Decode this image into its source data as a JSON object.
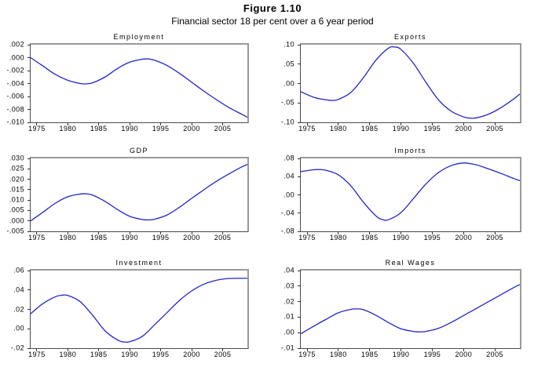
{
  "figure": {
    "title": "Figure 1.10",
    "subtitle": "Financial sector 18 per cent over a 6 year period"
  },
  "colors": {
    "line": "#2323cc",
    "frame_light": "#9a9a9a",
    "frame_dark": "#4a4a4a",
    "text": "#000000"
  },
  "axis": {
    "x_min": 1974,
    "x_max": 2009,
    "x_ticks": [
      "1975",
      "1980",
      "1985",
      "1990",
      "1995",
      "2000",
      "2005"
    ]
  },
  "chart_data": [
    {
      "type": "line",
      "title": "Employment",
      "xlabel": "",
      "ylabel": "",
      "xlim": [
        1974,
        2009
      ],
      "ylim": [
        -0.01,
        0.002
      ],
      "grid": false,
      "legend": "none",
      "yticks": {
        "labels": [
          ".002",
          ".000",
          "-.002",
          "-.004",
          "-.006",
          "-.008",
          "-.010"
        ],
        "values": [
          0.002,
          0.0,
          -0.002,
          -0.004,
          -0.006,
          -0.008,
          -0.01
        ]
      },
      "x": [
        1974,
        1976,
        1978,
        1980,
        1982,
        1983,
        1984,
        1986,
        1988,
        1990,
        1992,
        1993,
        1994,
        1996,
        1998,
        2000,
        2002,
        2004,
        2006,
        2008,
        2009
      ],
      "y": [
        0.0,
        -0.0013,
        -0.0026,
        -0.0035,
        -0.004,
        -0.00405,
        -0.0039,
        -0.003,
        -0.0017,
        -0.0007,
        -0.00025,
        -0.0002,
        -0.0004,
        -0.0012,
        -0.0024,
        -0.0038,
        -0.0052,
        -0.0065,
        -0.0077,
        -0.0087,
        -0.0092
      ]
    },
    {
      "type": "line",
      "title": "Exports",
      "xlabel": "",
      "ylabel": "",
      "xlim": [
        1974,
        2009
      ],
      "ylim": [
        -0.1,
        0.1
      ],
      "grid": false,
      "legend": "none",
      "yticks": {
        "labels": [
          ".10",
          ".05",
          ".00",
          "-.05",
          "-.10"
        ],
        "values": [
          0.1,
          0.05,
          0.0,
          -0.05,
          -0.1
        ]
      },
      "x": [
        1974,
        1976,
        1978,
        1979,
        1980,
        1982,
        1984,
        1986,
        1988,
        1989,
        1990,
        1992,
        1994,
        1996,
        1998,
        2000,
        2001,
        2002,
        2004,
        2006,
        2008,
        2009
      ],
      "y": [
        -0.021,
        -0.035,
        -0.042,
        -0.0435,
        -0.041,
        -0.023,
        0.015,
        0.06,
        0.091,
        0.094,
        0.088,
        0.052,
        0.003,
        -0.042,
        -0.071,
        -0.086,
        -0.089,
        -0.0885,
        -0.079,
        -0.062,
        -0.04,
        -0.027
      ]
    },
    {
      "type": "line",
      "title": "GDP",
      "xlabel": "",
      "ylabel": "",
      "xlim": [
        1974,
        2009
      ],
      "ylim": [
        -0.005,
        0.03
      ],
      "grid": false,
      "legend": "none",
      "yticks": {
        "labels": [
          ".030",
          ".025",
          ".020",
          ".015",
          ".010",
          ".005",
          ".000",
          "-.005"
        ],
        "values": [
          0.03,
          0.025,
          0.02,
          0.015,
          0.01,
          0.005,
          0.0,
          -0.005
        ]
      },
      "x": [
        1974,
        1976,
        1978,
        1980,
        1982,
        1983,
        1984,
        1986,
        1988,
        1990,
        1992,
        1993,
        1994,
        1996,
        1998,
        2000,
        2002,
        2004,
        2006,
        2008,
        2009
      ],
      "y": [
        0.0,
        0.0042,
        0.0085,
        0.0116,
        0.0129,
        0.013,
        0.0124,
        0.0094,
        0.0055,
        0.0022,
        0.0007,
        0.0005,
        0.0008,
        0.0028,
        0.0065,
        0.0108,
        0.015,
        0.019,
        0.0225,
        0.0258,
        0.0271
      ]
    },
    {
      "type": "line",
      "title": "Imports",
      "xlabel": "",
      "ylabel": "",
      "xlim": [
        1974,
        2009
      ],
      "ylim": [
        -0.08,
        0.08
      ],
      "grid": false,
      "legend": "none",
      "yticks": {
        "labels": [
          ".08",
          ".04",
          ".00",
          "-.04",
          "-.08"
        ],
        "values": [
          0.08,
          0.04,
          0.0,
          -0.04,
          -0.08
        ]
      },
      "x": [
        1974,
        1976,
        1977,
        1978,
        1980,
        1982,
        1984,
        1986,
        1987,
        1988,
        1990,
        1992,
        1994,
        1996,
        1998,
        2000,
        2002,
        2004,
        2006,
        2008,
        2009
      ],
      "y": [
        0.051,
        0.055,
        0.0555,
        0.054,
        0.044,
        0.02,
        -0.016,
        -0.046,
        -0.054,
        -0.0545,
        -0.039,
        -0.008,
        0.024,
        0.049,
        0.064,
        0.07,
        0.066,
        0.057,
        0.047,
        0.036,
        0.031
      ]
    },
    {
      "type": "line",
      "title": "Investment",
      "xlabel": "",
      "ylabel": "",
      "xlim": [
        1974,
        2009
      ],
      "ylim": [
        -0.02,
        0.06
      ],
      "grid": false,
      "legend": "none",
      "yticks": {
        "labels": [
          ".06",
          ".04",
          ".02",
          ".00",
          "-.02"
        ],
        "values": [
          0.06,
          0.04,
          0.02,
          0.0,
          -0.02
        ]
      },
      "x": [
        1974,
        1976,
        1978,
        1979,
        1980,
        1982,
        1984,
        1986,
        1988,
        1989,
        1990,
        1992,
        1994,
        1996,
        1998,
        2000,
        2002,
        2004,
        2006,
        2008,
        2009
      ],
      "y": [
        0.0155,
        0.026,
        0.033,
        0.0345,
        0.0343,
        0.028,
        0.014,
        -0.002,
        -0.0115,
        -0.0135,
        -0.0133,
        -0.008,
        0.004,
        0.0165,
        0.029,
        0.039,
        0.046,
        0.05,
        0.0518,
        0.052,
        0.052
      ]
    },
    {
      "type": "line",
      "title": "Real Wages",
      "xlabel": "",
      "ylabel": "",
      "xlim": [
        1974,
        2009
      ],
      "ylim": [
        -0.01,
        0.04
      ],
      "grid": false,
      "legend": "none",
      "yticks": {
        "labels": [
          ".04",
          ".03",
          ".02",
          ".01",
          ".00",
          "-.01"
        ],
        "values": [
          0.04,
          0.03,
          0.02,
          0.01,
          0.0,
          -0.01
        ]
      },
      "x": [
        1974,
        1976,
        1978,
        1980,
        1982,
        1983,
        1984,
        1986,
        1988,
        1990,
        1992,
        1993,
        1994,
        1996,
        1998,
        2000,
        2002,
        2004,
        2006,
        2008,
        2009
      ],
      "y": [
        -0.0007,
        0.004,
        0.0085,
        0.0128,
        0.015,
        0.0153,
        0.0148,
        0.0112,
        0.0065,
        0.0025,
        0.0008,
        0.0005,
        0.0008,
        0.0028,
        0.0065,
        0.011,
        0.0155,
        0.02,
        0.0245,
        0.029,
        0.031
      ]
    }
  ]
}
